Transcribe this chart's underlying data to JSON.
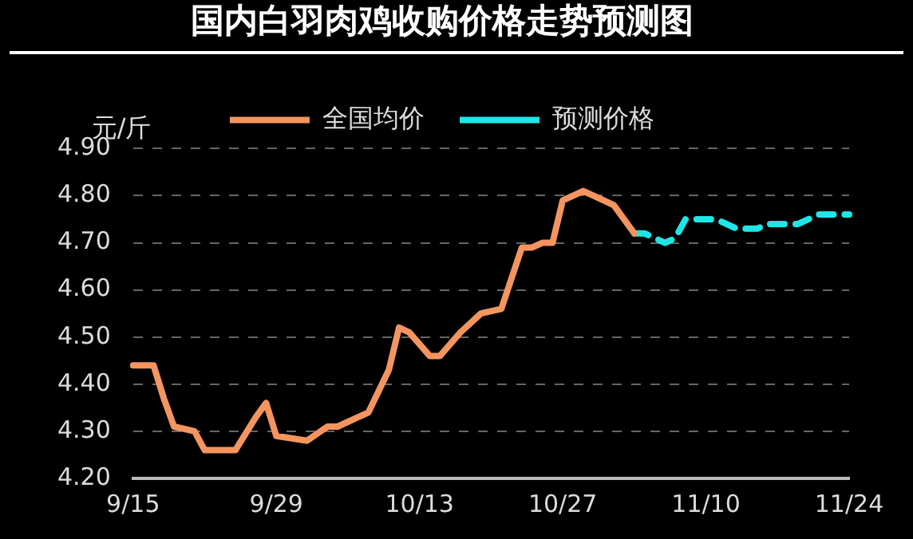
{
  "chart_data": {
    "type": "line",
    "title": "国内白羽肉鸡收购价格走势预测图",
    "ylabel": "元/斤",
    "categories": [
      "9/15",
      null,
      null,
      null,
      null,
      null,
      null,
      null,
      null,
      null,
      null,
      null,
      null,
      null,
      "9/29",
      null,
      null,
      null,
      null,
      null,
      null,
      null,
      null,
      null,
      null,
      null,
      null,
      null,
      "10/13",
      null,
      null,
      null,
      null,
      null,
      null,
      null,
      null,
      null,
      null,
      null,
      null,
      null,
      "10/27",
      null,
      null,
      null,
      null,
      null,
      null,
      null,
      null,
      null,
      null,
      null,
      null,
      null,
      "11/10",
      null,
      null,
      null,
      null,
      null,
      null,
      null,
      null,
      null,
      null,
      null,
      null,
      null,
      "11/24"
    ],
    "series": [
      {
        "name": "全国均价",
        "color": "#f4955f",
        "line_style": "solid",
        "values": [
          4.44,
          null,
          4.44,
          4.37,
          4.31,
          null,
          4.3,
          4.26,
          null,
          null,
          4.26,
          null,
          4.33,
          4.36,
          4.29,
          null,
          null,
          4.28,
          null,
          4.31,
          4.31,
          null,
          4.33,
          4.34,
          null,
          4.43,
          4.52,
          4.51,
          null,
          4.46,
          4.46,
          null,
          4.51,
          null,
          4.55,
          null,
          4.56,
          null,
          4.69,
          4.69,
          4.7,
          4.7,
          4.79,
          null,
          4.81,
          4.8,
          4.79,
          4.78,
          null,
          4.72,
          null,
          null,
          null,
          null,
          null,
          null,
          null,
          null,
          null,
          null,
          null,
          null,
          null,
          null,
          null,
          null,
          null,
          null,
          null,
          null,
          null
        ]
      },
      {
        "name": "预测价格",
        "color": "#1ee6e6",
        "line_style": "dashed",
        "values": [
          null,
          null,
          null,
          null,
          null,
          null,
          null,
          null,
          null,
          null,
          null,
          null,
          null,
          null,
          null,
          null,
          null,
          null,
          null,
          null,
          null,
          null,
          null,
          null,
          null,
          null,
          null,
          null,
          null,
          null,
          null,
          null,
          null,
          null,
          null,
          null,
          null,
          null,
          null,
          null,
          null,
          null,
          null,
          null,
          null,
          null,
          null,
          null,
          null,
          4.72,
          4.72,
          null,
          4.7,
          4.71,
          4.75,
          4.75,
          null,
          4.75,
          4.74,
          4.73,
          null,
          4.73,
          4.74,
          null,
          4.74,
          4.74,
          null,
          4.76,
          null,
          null,
          4.76
        ]
      }
    ],
    "ylim": [
      4.2,
      4.9
    ],
    "yticks": [
      {
        "value": 4.2,
        "label": "4.20"
      },
      {
        "value": 4.3,
        "label": "4.30"
      },
      {
        "value": 4.4,
        "label": "4.40"
      },
      {
        "value": 4.5,
        "label": "4.50"
      },
      {
        "value": 4.6,
        "label": "4.60"
      },
      {
        "value": 4.7,
        "label": "4.70"
      },
      {
        "value": 4.8,
        "label": "4.80"
      },
      {
        "value": 4.9,
        "label": "4.90"
      }
    ],
    "grid": "y",
    "legend": "top"
  }
}
